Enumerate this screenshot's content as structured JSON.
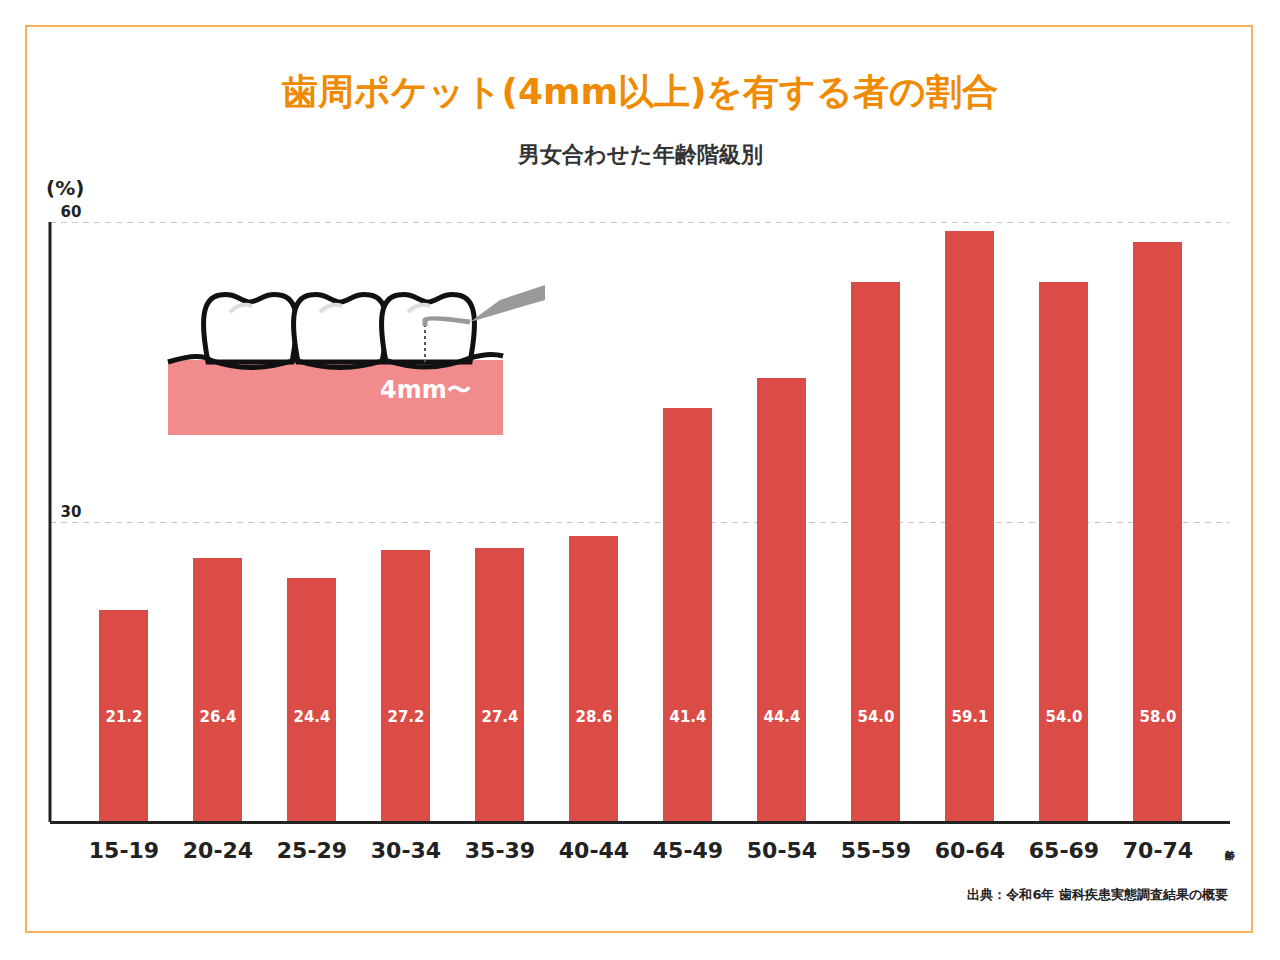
{
  "chart_data": {
    "type": "bar",
    "title": "歯周ポケット(4mm以上)を有する者の割合",
    "subtitle": "男女合わせた年齢階級別",
    "y_label": "(%)",
    "x_label": "年齢",
    "source": "出典：令和6年 歯科疾患実態調査結果の概要",
    "annotation": "4mm〜",
    "categories": [
      "15-19",
      "20-24",
      "25-29",
      "30-34",
      "35-39",
      "40-44",
      "45-49",
      "50-54",
      "55-59",
      "60-64",
      "65-69",
      "70-74"
    ],
    "values": [
      21.2,
      26.4,
      24.4,
      27.2,
      27.4,
      28.6,
      41.4,
      44.4,
      54.0,
      59.1,
      54.0,
      58.0
    ],
    "value_labels": [
      "21.2",
      "26.4",
      "24.4",
      "27.2",
      "27.4",
      "28.6",
      "41.4",
      "44.4",
      "54.0",
      "59.1",
      "54.0",
      "58.0"
    ],
    "color": "#dc4c46",
    "ylim": [
      0,
      60
    ],
    "yticks": [
      30,
      60
    ],
    "grid": true,
    "data_labels": true
  }
}
